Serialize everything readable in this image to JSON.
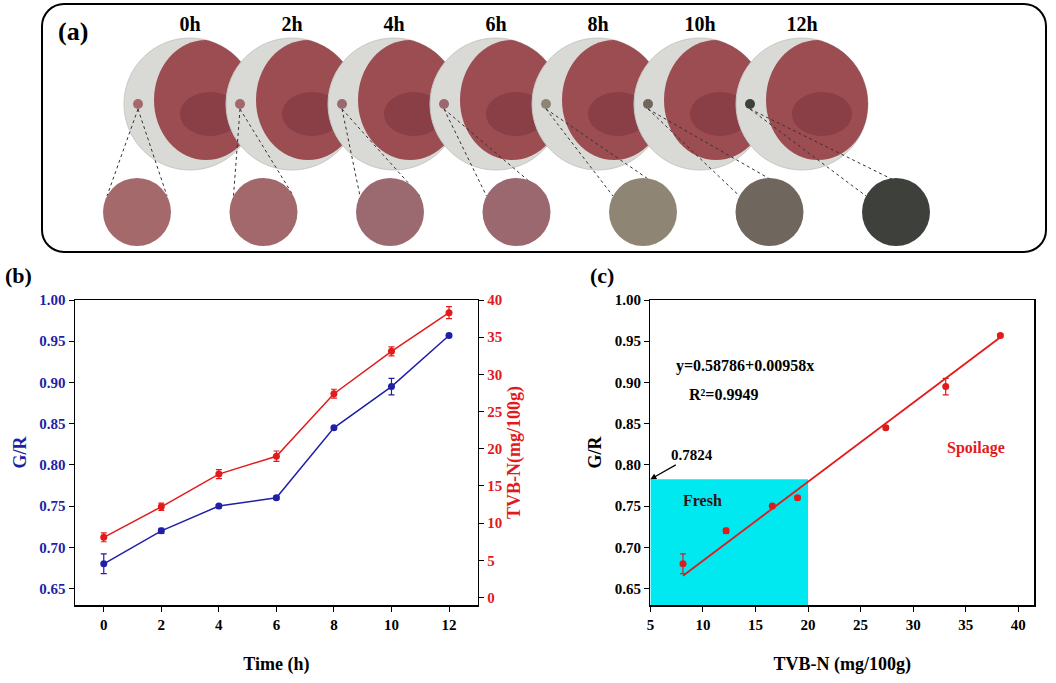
{
  "image_panel": {
    "label": "(a)",
    "times": [
      "0h",
      "2h",
      "4h",
      "6h",
      "8h",
      "10h",
      "12h"
    ],
    "colors": [
      "#a4696b",
      "#a3686b",
      "#9a6a70",
      "#9b6870",
      "#8f8574",
      "#6f675e",
      "#3e403b"
    ]
  },
  "chart_data": [
    {
      "label": "(b)",
      "type": "line",
      "marker": "circle",
      "grid": false,
      "x": [
        0,
        2,
        4,
        6,
        8,
        10,
        12
      ],
      "x_label": "Time (h)",
      "xlim": [
        -1,
        13
      ],
      "xticks": [
        0,
        2,
        4,
        6,
        8,
        10,
        12
      ],
      "y_label": "G/R",
      "ylim": [
        0.63,
        1.0
      ],
      "yticks": [
        0.65,
        {
          "value": 0.7,
          "label": "0.70"
        },
        0.75,
        {
          "value": 0.8,
          "label": "0.80"
        },
        0.85,
        {
          "value": 0.9,
          "label": "0.90"
        },
        0.95,
        {
          "value": 1.0,
          "label": "1.00"
        }
      ],
      "y2_label": "TVB-N(mg/100g)",
      "y2lim": [
        -1,
        40
      ],
      "y2ticks": [
        0,
        5,
        10,
        15,
        20,
        25,
        30,
        35,
        40
      ],
      "series": [
        {
          "name": "G/R",
          "color": "#1f1fa8",
          "values": [
            0.68,
            0.72,
            0.75,
            0.76,
            0.845,
            0.895,
            0.957
          ],
          "errors": [
            0.012,
            0.003,
            0.002,
            0.002,
            0.002,
            0.01,
            0.002
          ]
        },
        {
          "name": "TVB-N",
          "color": "#e31a1c",
          "axis": "y2",
          "values": [
            8.1,
            12.2,
            16.6,
            19.0,
            27.4,
            33.1,
            38.3
          ],
          "errors": [
            0.6,
            0.5,
            0.6,
            0.7,
            0.6,
            0.6,
            0.8
          ]
        }
      ]
    },
    {
      "label": "(c)",
      "type": "scatter",
      "marker": "circle",
      "grid": false,
      "color": "#e31a1c",
      "x": [
        8.1,
        12.2,
        16.6,
        19.0,
        27.4,
        33.1,
        38.3
      ],
      "values": [
        0.68,
        0.72,
        0.75,
        0.76,
        0.845,
        0.895,
        0.957
      ],
      "errors": [
        0.012,
        0.003,
        0.002,
        0.002,
        0.002,
        0.01,
        0.002
      ],
      "x_label": "TVB-N (mg/100g)",
      "xlim": [
        5,
        41.5
      ],
      "xticks": [
        5,
        10,
        15,
        20,
        25,
        30,
        35,
        40
      ],
      "y_label": "G/R",
      "ylim": [
        0.63,
        1.0
      ],
      "yticks": [
        0.65,
        {
          "value": 0.7,
          "label": "0.70"
        },
        0.75,
        {
          "value": 0.8,
          "label": "0.80"
        },
        0.85,
        {
          "value": 0.9,
          "label": "0.90"
        },
        0.95,
        {
          "value": 1.0,
          "label": "1.00"
        }
      ],
      "fit": {
        "x": [
          8.1,
          38.3
        ],
        "values": [
          0.6655,
          0.9548
        ],
        "color": "#e31a1c"
      },
      "region": {
        "x0": 5,
        "x1": 20,
        "y1": 0.7824,
        "label": "0.7824",
        "color": "#00e8f0"
      },
      "annotations": [
        {
          "text": "y=0.58786+0.00958x",
          "x": 14,
          "y": 0.92,
          "color": "#000000"
        },
        {
          "text": "R²=0.9949",
          "x": 12,
          "y": 0.885,
          "color": "#000000"
        },
        {
          "text": "Fresh",
          "x": 10,
          "y": 0.757,
          "color": "#3a1010"
        },
        {
          "text": "Spoilage",
          "x": 36,
          "y": 0.82,
          "color": "#e31a1c"
        }
      ]
    }
  ]
}
